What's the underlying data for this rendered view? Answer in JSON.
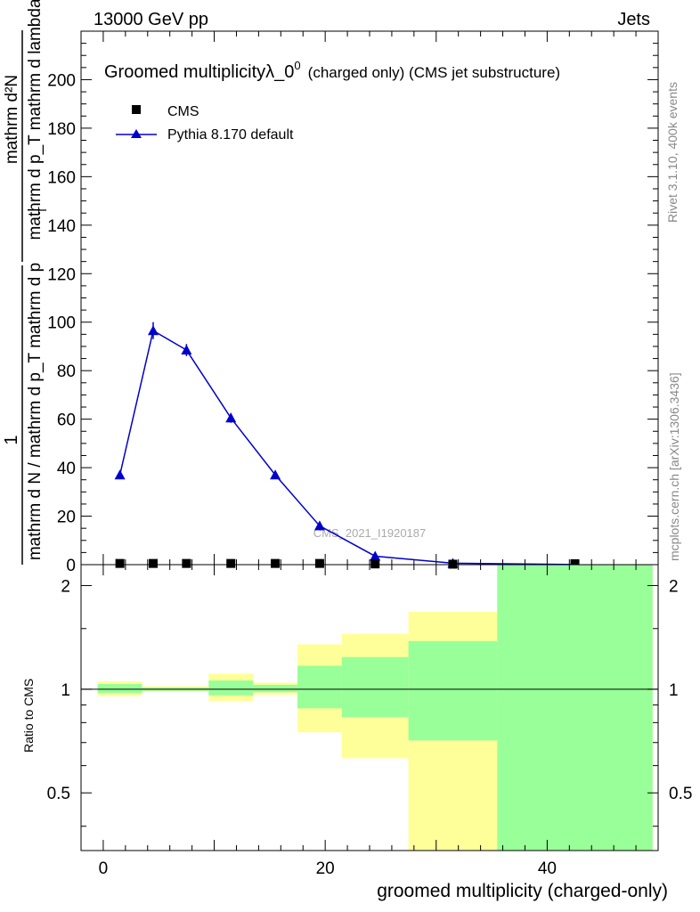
{
  "header": {
    "left": "13000 GeV pp",
    "right": "Jets"
  },
  "side_labels": {
    "rivet": "Rivet 3.1.10,  400k events",
    "mcplots": "mcplots.cern.ch [arXiv:1306.3436]"
  },
  "chart_data": [
    {
      "type": "line",
      "panel": "main",
      "title": "Groomed multiplicityλ_0",
      "title_superscript": "0",
      "title_suffix": "(charged only) (CMS jet substructure)",
      "ylabel": {
        "prefix": "1",
        "prefix_denominator": "mathrm d N / mathrm d p_T mathrm d p",
        "numerator": "mathrm d²N",
        "denominator": "mathrm d p_T mathrm d lambda",
        "subscript_T": "T"
      },
      "watermark": "CMS_2021_I1920187",
      "xlim": [
        -2,
        50
      ],
      "ylim": [
        0,
        220
      ],
      "x_ticks": [
        0,
        20,
        40
      ],
      "y_ticks": [
        0,
        20,
        40,
        60,
        80,
        100,
        120,
        140,
        160,
        180,
        200
      ],
      "y_tick_labels": [
        "0",
        "20",
        "40",
        "60",
        "80",
        "100",
        "120",
        "140",
        "160",
        "180",
        "200"
      ],
      "legend_position": "top-left",
      "series": [
        {
          "name": "CMS",
          "marker": "square",
          "color": "#000000",
          "x": [
            1.5,
            4.5,
            7.5,
            11.5,
            15.5,
            19.5,
            24.5,
            31.5,
            42.5
          ],
          "y": [
            0.5,
            0.5,
            0.5,
            0.5,
            0.5,
            0.5,
            0.3,
            0.2,
            0.4
          ]
        },
        {
          "name": "Pythia 8.170 default",
          "marker": "triangle",
          "color": "#0000cc",
          "x": [
            1.5,
            4.5,
            7.5,
            11.5,
            15.5,
            19.5,
            24.5,
            31.5,
            42.5
          ],
          "y": [
            37,
            96.5,
            88.5,
            60.5,
            37,
            16,
            3.5,
            0.6,
            0.05
          ],
          "err": [
            1,
            3.5,
            2.5,
            2,
            1,
            0.5,
            0.3,
            0.1,
            0.0
          ]
        }
      ]
    },
    {
      "type": "area",
      "panel": "ratio",
      "ylabel": "Ratio to CMS",
      "xlabel": "groomed multiplicity (charged-only)",
      "xlim": [
        -2,
        50
      ],
      "ylim": [
        0.34,
        2.3
      ],
      "y_ticks": [
        0.5,
        1,
        2
      ],
      "y_tick_labels": [
        "0.5",
        "1",
        "2"
      ],
      "x_ticks": [
        0,
        20,
        40
      ],
      "x_tick_labels": [
        "0",
        "20",
        "40"
      ],
      "reference_line": 1,
      "bands": [
        {
          "xlo": -0.5,
          "xhi": 3.5,
          "yellow": [
            0.955,
            1.055
          ],
          "green": [
            0.975,
            1.035
          ]
        },
        {
          "xlo": 3.5,
          "xhi": 9.5,
          "yellow": [
            0.985,
            1.02
          ],
          "green": [
            0.99,
            1.01
          ]
        },
        {
          "xlo": 9.5,
          "xhi": 13.5,
          "yellow": [
            0.925,
            1.11
          ],
          "green": [
            0.96,
            1.06
          ]
        },
        {
          "xlo": 13.5,
          "xhi": 17.5,
          "yellow": [
            0.965,
            1.045
          ],
          "green": [
            0.98,
            1.03
          ]
        },
        {
          "xlo": 17.5,
          "xhi": 21.5,
          "yellow": [
            0.75,
            1.35
          ],
          "green": [
            0.88,
            1.17
          ]
        },
        {
          "xlo": 21.5,
          "xhi": 27.5,
          "yellow": [
            0.63,
            1.45
          ],
          "green": [
            0.83,
            1.24
          ]
        },
        {
          "xlo": 27.5,
          "xhi": 35.5,
          "yellow": [
            0.34,
            1.68
          ],
          "green": [
            0.71,
            1.38
          ]
        },
        {
          "xlo": 35.5,
          "xhi": 49.5,
          "yellow": [
            0.34,
            2.3
          ],
          "green": [
            0.34,
            2.3
          ]
        }
      ],
      "colors": {
        "yellow": "#ffff99",
        "green": "#99ff99"
      }
    }
  ]
}
